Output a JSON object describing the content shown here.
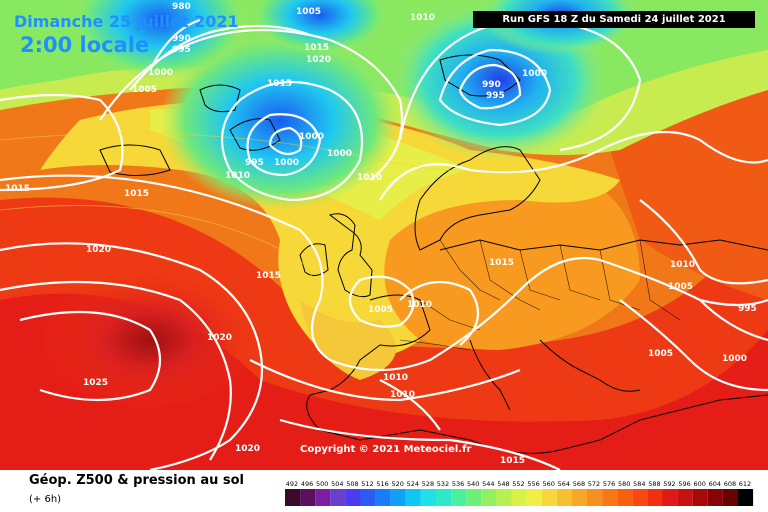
{
  "header": {
    "date": "Dimanche 25 juillet 2021",
    "time": "2:00 locale",
    "run": "Run GFS 18 Z du Samedi 24 juillet 2021"
  },
  "copyright": "Copyright © 2021 Meteociel.fr",
  "isobars": [
    "980",
    "990",
    "995",
    "1005",
    "1000",
    "1010",
    "1015",
    "1020",
    "1015",
    "995",
    "1000",
    "1000",
    "1000",
    "1010",
    "990",
    "995",
    "1000",
    "1015",
    "1005",
    "1015",
    "1020",
    "1015",
    "1010",
    "1005",
    "1010",
    "1015",
    "1010",
    "1010",
    "1010",
    "1005",
    "995",
    "1005",
    "1000",
    "1020",
    "1025",
    "1020",
    "1015"
  ],
  "legend": {
    "title": "Géop. Z500 & pression au sol",
    "subtitle": "(+ 6h)",
    "values": [
      "492",
      "496",
      "500",
      "504",
      "508",
      "512",
      "516",
      "520",
      "524",
      "528",
      "532",
      "536",
      "540",
      "544",
      "548",
      "552",
      "556",
      "560",
      "564",
      "568",
      "572",
      "576",
      "580",
      "584",
      "588",
      "592",
      "596",
      "600",
      "604",
      "608",
      "612"
    ],
    "colors": [
      "#3a0a2a",
      "#5b0f5e",
      "#7b1fa2",
      "#6a3fd0",
      "#4a3cf0",
      "#2a5cf5",
      "#1a7cf8",
      "#10a0f8",
      "#10c6f2",
      "#20e0e8",
      "#30e8c8",
      "#48f0a0",
      "#6cf07a",
      "#90f060",
      "#b8f050",
      "#d8f048",
      "#f2ee48",
      "#f8d838",
      "#f8c030",
      "#f8a828",
      "#f89020",
      "#f87818",
      "#f86010",
      "#f84a10",
      "#f03010",
      "#e01818",
      "#c81010",
      "#a80808",
      "#880404",
      "#680202",
      "#000000"
    ]
  }
}
